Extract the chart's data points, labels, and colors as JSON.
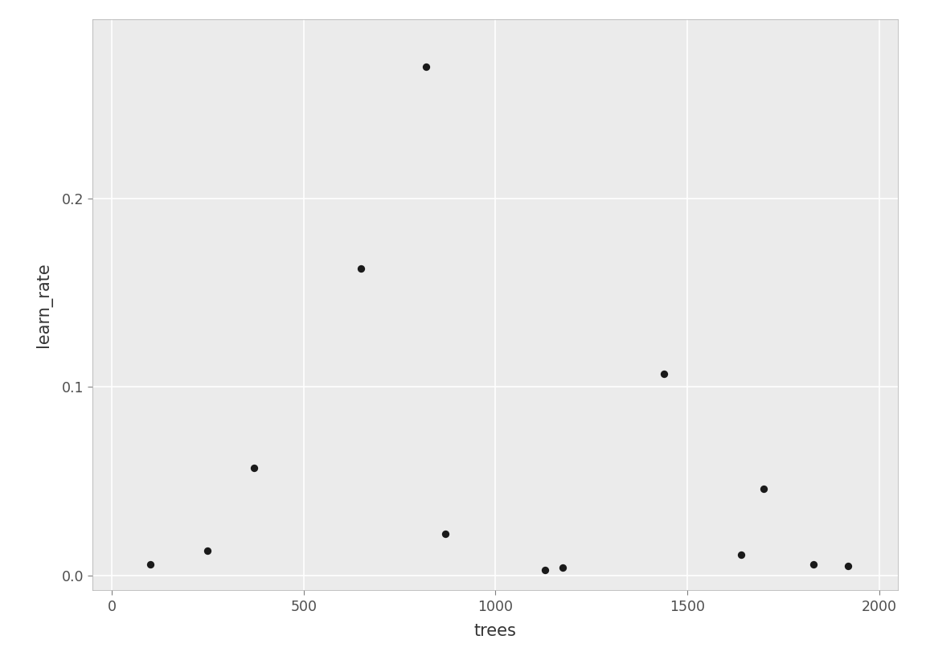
{
  "trees": [
    100,
    250,
    370,
    650,
    820,
    870,
    1130,
    1175,
    1440,
    1640,
    1700,
    1830,
    1920
  ],
  "learn_rate": [
    0.006,
    0.013,
    0.057,
    0.163,
    0.27,
    0.022,
    0.003,
    0.004,
    0.107,
    0.011,
    0.046,
    0.006,
    0.005
  ],
  "xlabel": "trees",
  "ylabel": "learn_rate",
  "xlim": [
    -50,
    2050
  ],
  "ylim": [
    -0.008,
    0.295
  ],
  "xticks": [
    0,
    500,
    1000,
    1500,
    2000
  ],
  "yticks": [
    0.0,
    0.1,
    0.2
  ],
  "bg_color": "#EBEBEB",
  "grid_color": "#FFFFFF",
  "point_color": "#1a1a1a",
  "point_size": 45,
  "label_fontsize": 15,
  "tick_fontsize": 12.5
}
